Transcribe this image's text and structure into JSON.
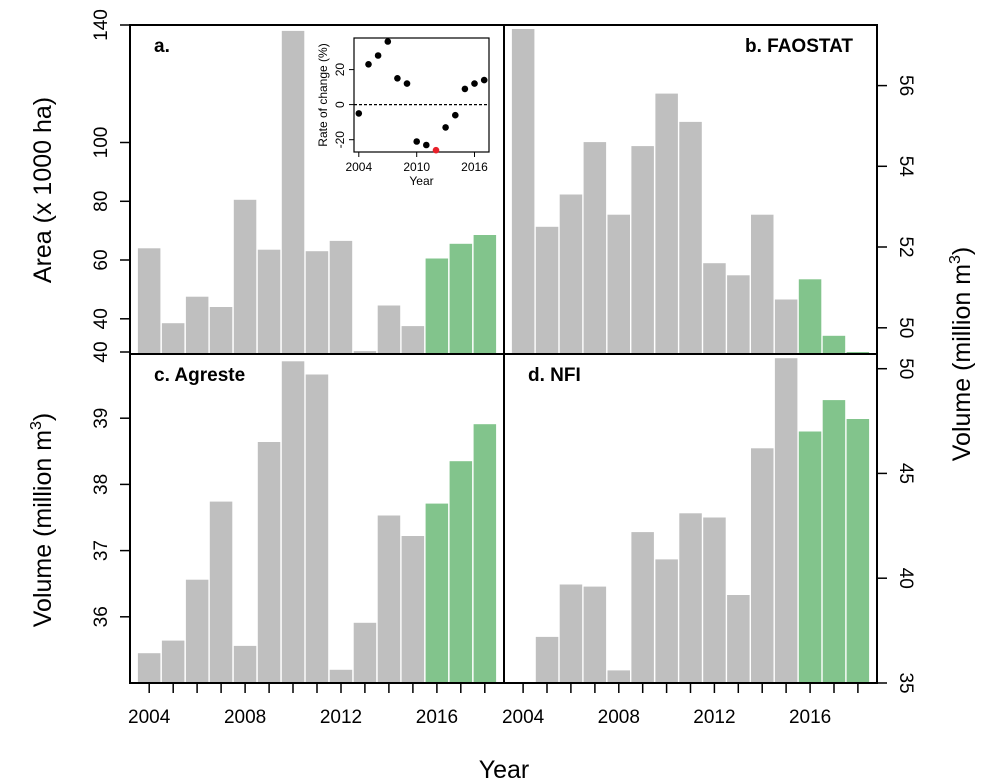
{
  "colors": {
    "bar_default": "#bfbfbf",
    "bar_highlight": "#82c48c",
    "point_default": "#000000",
    "point_highlight": "#e8202a"
  },
  "figure": {
    "xlabel": "Year",
    "left_top_ylabel": "Area (x 1000 ha)",
    "left_bottom_ylabel": "Volume (million m",
    "right_ylabel": "Volume (million m",
    "unit_superscript": "3"
  },
  "chart_data": [
    {
      "id": "a",
      "type": "bar",
      "title": "a.",
      "x": [
        2004,
        2005,
        2006,
        2007,
        2008,
        2009,
        2010,
        2011,
        2012,
        2013,
        2014,
        2015,
        2016,
        2017,
        2018
      ],
      "values": [
        64,
        38.5,
        47.5,
        44,
        80.5,
        63.5,
        138,
        63,
        66.5,
        29,
        44.5,
        37.5,
        60.5,
        65.5,
        68.5
      ],
      "highlight_from": 2016,
      "ylabel": "Area (x 1000 ha)",
      "ylim": [
        28,
        140
      ],
      "yticks": [
        40,
        60,
        80,
        100,
        140
      ],
      "axis_side": "left",
      "inset": {
        "type": "scatter",
        "x": [
          2004,
          2005,
          2006,
          2007,
          2008,
          2009,
          2010,
          2011,
          2012,
          2013,
          2014,
          2015,
          2016,
          2017
        ],
        "y": [
          -5,
          23,
          28,
          36,
          15,
          12,
          -21,
          -23,
          -26,
          -13,
          -6,
          9,
          12,
          14
        ],
        "highlight_index": 8,
        "ylabel": "Rate of change (%)",
        "xlabel": "Year",
        "xlim": [
          2003.5,
          2017.5
        ],
        "ylim": [
          -27,
          38
        ],
        "xticks": [
          2004,
          2010,
          2016
        ],
        "yticks": [
          -20,
          0,
          20
        ],
        "reference_line": 0
      }
    },
    {
      "id": "b",
      "type": "bar",
      "title": "b. FAOSTAT",
      "x": [
        2004,
        2005,
        2006,
        2007,
        2008,
        2009,
        2010,
        2011,
        2012,
        2013,
        2014,
        2015,
        2016,
        2017,
        2018
      ],
      "values": [
        57.4,
        52.5,
        53.3,
        54.6,
        52.8,
        54.5,
        55.8,
        55.1,
        51.6,
        51.3,
        52.8,
        50.7,
        51.2,
        49.8,
        49.4
      ],
      "highlight_from": 2016,
      "ylabel": "Volume (million m³)",
      "ylim": [
        49.35,
        57.5
      ],
      "yticks": [
        50,
        52,
        54,
        56
      ],
      "axis_side": "right"
    },
    {
      "id": "c",
      "type": "bar",
      "title": "c. Agreste",
      "x": [
        2004,
        2005,
        2006,
        2007,
        2008,
        2009,
        2010,
        2011,
        2012,
        2013,
        2014,
        2015,
        2016,
        2017,
        2018
      ],
      "values": [
        35.45,
        35.64,
        36.56,
        37.74,
        35.56,
        38.64,
        39.86,
        39.66,
        35.2,
        35.91,
        37.53,
        37.22,
        37.71,
        38.35,
        38.91
      ],
      "highlight_from": 2016,
      "ylabel": "Volume (million m³)",
      "ylim": [
        35,
        39.97
      ],
      "yticks": [
        36,
        37,
        38,
        39,
        40
      ],
      "axis_side": "left"
    },
    {
      "id": "d",
      "type": "bar",
      "title": "d. NFI",
      "x": [
        2004,
        2005,
        2006,
        2007,
        2008,
        2009,
        2010,
        2011,
        2012,
        2013,
        2014,
        2015,
        2016,
        2017,
        2018
      ],
      "values": [
        35,
        37.2,
        39.7,
        39.6,
        35.6,
        42.2,
        40.9,
        43.1,
        42.9,
        39.2,
        46.2,
        50.5,
        47,
        48.5,
        47.6
      ],
      "highlight_from": 2016,
      "ylabel": "Volume (million m³)",
      "ylim": [
        35,
        50.7
      ],
      "yticks": [
        35,
        40,
        45,
        50
      ],
      "axis_side": "right"
    }
  ],
  "x_axis": {
    "ticks": [
      2004,
      2008,
      2012,
      2016
    ]
  }
}
